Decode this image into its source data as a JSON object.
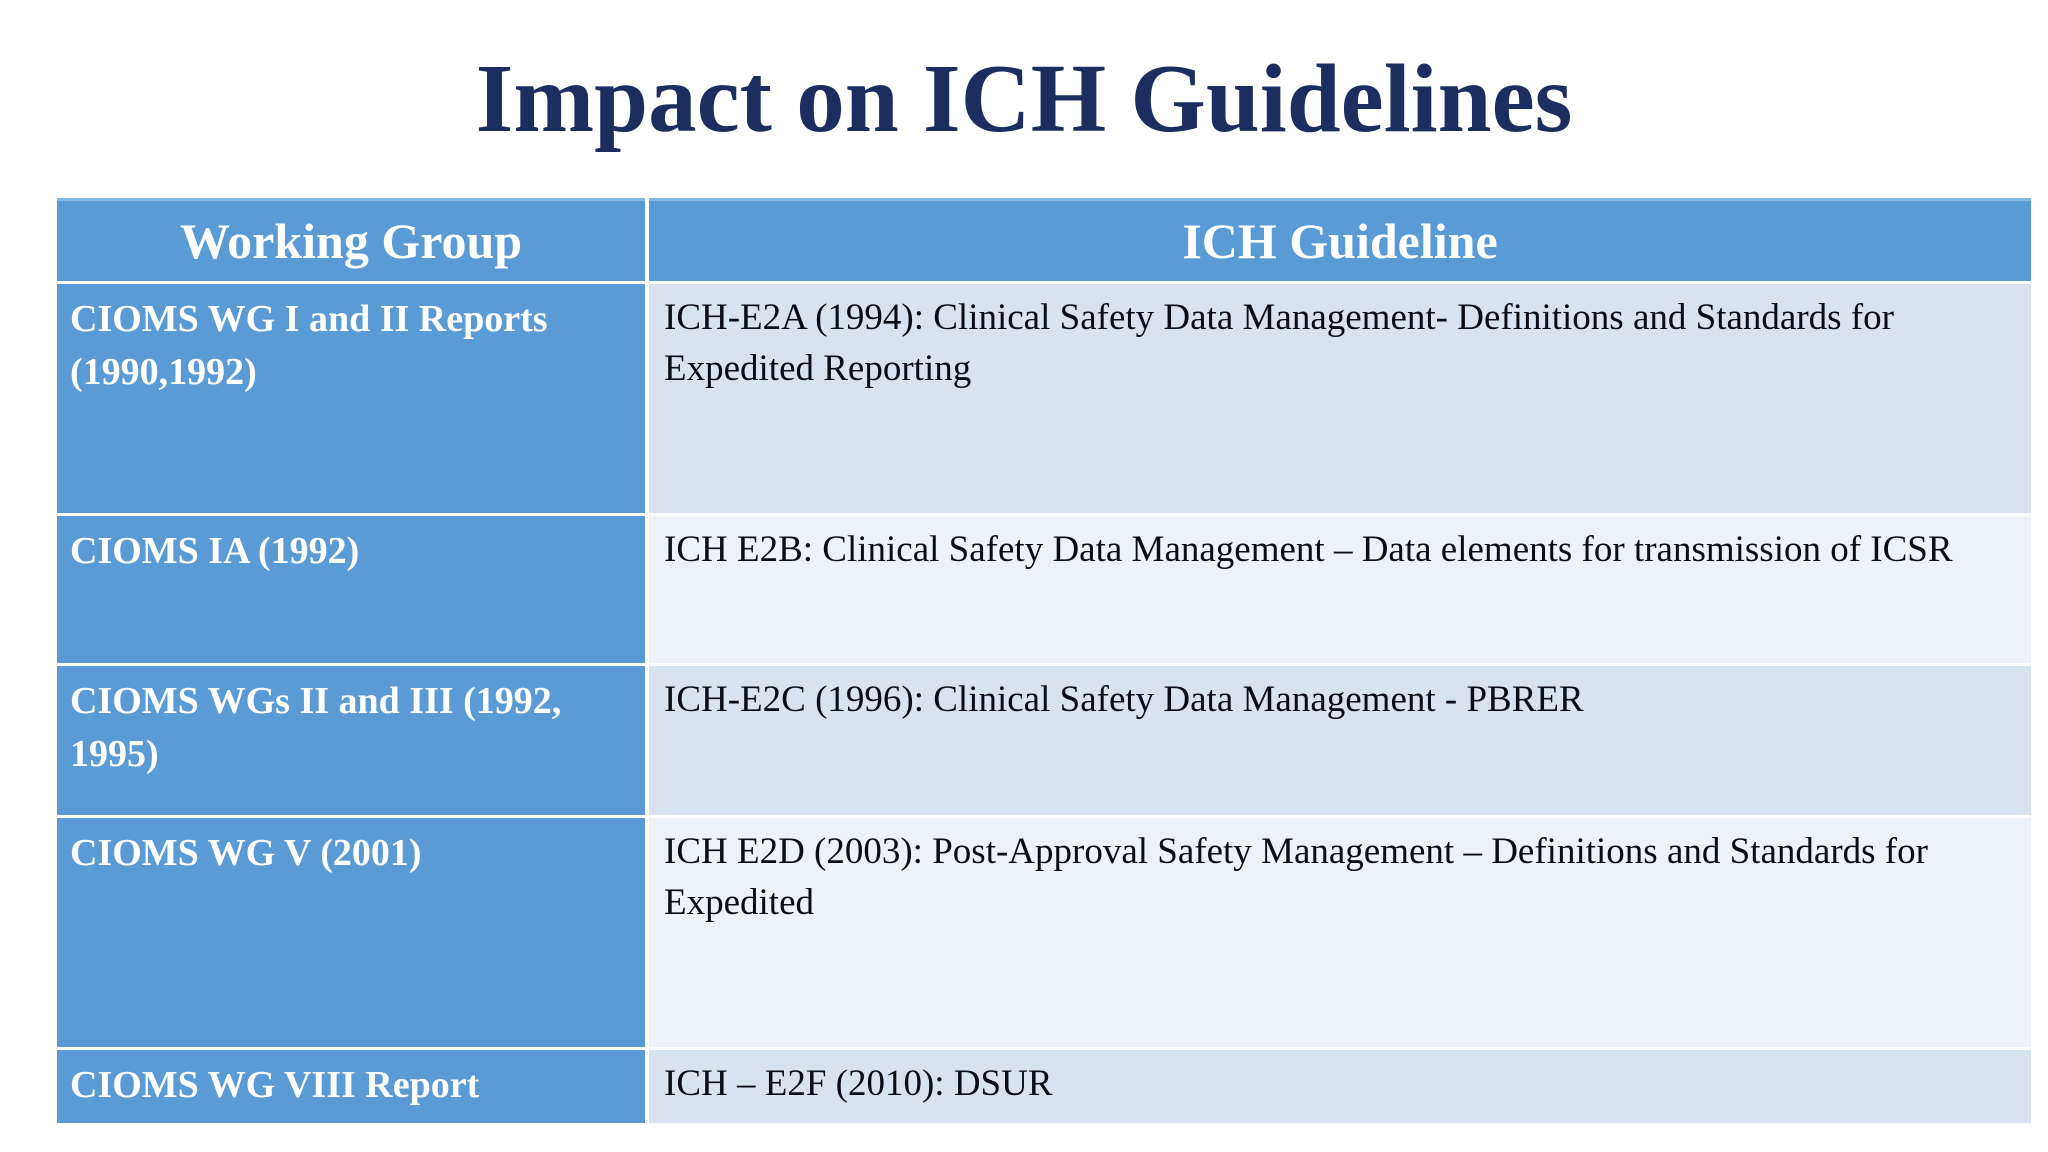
{
  "title": "Impact on ICH Guidelines",
  "colors": {
    "title_text": "#1c2e5f",
    "table_header_bg": "#5b9bd5",
    "left_column_bg": "#5b9bd5",
    "row_band_dark": "#d9e3f0",
    "row_band_light": "#edf1f8",
    "header_text": "#ffffff",
    "body_text": "#0c0c14",
    "page_bg": "#ffffff"
  },
  "table": {
    "header": {
      "col1": "Working Group",
      "col2": "ICH Guideline"
    },
    "rows": [
      {
        "working_group": "CIOMS WG I and II Reports (1990,1992)",
        "ich_guideline": "ICH-E2A (1994): Clinical Safety Data Management- Definitions and Standards for Expedited Reporting"
      },
      {
        "working_group": "CIOMS IA (1992)",
        "ich_guideline": "ICH E2B: Clinical Safety Data Management – Data elements for transmission of ICSR"
      },
      {
        "working_group": "CIOMS WGs II and III (1992, 1995)",
        "ich_guideline": "ICH-E2C (1996): Clinical Safety Data Management - PBRER"
      },
      {
        "working_group": "CIOMS WG V (2001)",
        "ich_guideline": "ICH E2D (2003): Post-Approval Safety Management – Definitions and Standards for Expedited"
      },
      {
        "working_group": "CIOMS WG VIII Report",
        "ich_guideline": "ICH – E2F (2010): DSUR"
      }
    ]
  }
}
